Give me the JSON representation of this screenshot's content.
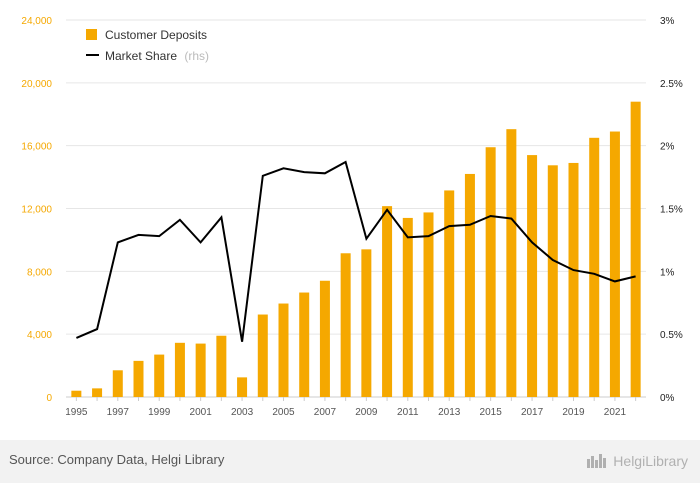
{
  "chart_data": {
    "type": "bar+line",
    "categories": [
      "1995",
      "1996",
      "1997",
      "1998",
      "1999",
      "2000",
      "2001",
      "2002",
      "2003",
      "2004",
      "2005",
      "2006",
      "2007",
      "2008",
      "2009",
      "2010",
      "2011",
      "2012",
      "2013",
      "2014",
      "2015",
      "2016",
      "2017",
      "2018",
      "2019",
      "2020",
      "2021",
      "2022"
    ],
    "x_tick_labels": [
      "1995",
      "1997",
      "1999",
      "2001",
      "2003",
      "2005",
      "2007",
      "2009",
      "2011",
      "2013",
      "2015",
      "2017",
      "2019",
      "2021"
    ],
    "series": [
      {
        "name": "Customer Deposits",
        "type": "bar",
        "axis": "left",
        "color": "#f5a800",
        "values": [
          400,
          550,
          1700,
          2300,
          2700,
          3450,
          3400,
          3900,
          1250,
          5250,
          5950,
          6650,
          7400,
          9150,
          9400,
          12150,
          11400,
          11750,
          13150,
          14200,
          15900,
          17050,
          15400,
          14750,
          14900,
          16500,
          16900,
          18800
        ]
      },
      {
        "name": "Market Share",
        "suffix": "(rhs)",
        "type": "line",
        "axis": "right",
        "color": "#000000",
        "values": [
          0.47,
          0.54,
          1.23,
          1.29,
          1.28,
          1.41,
          1.23,
          1.43,
          0.44,
          1.76,
          1.82,
          1.79,
          1.78,
          1.87,
          1.26,
          1.49,
          1.27,
          1.28,
          1.36,
          1.37,
          1.44,
          1.42,
          1.23,
          1.09,
          1.01,
          0.98,
          0.92,
          0.96
        ]
      }
    ],
    "y_left": {
      "min": 0,
      "max": 24000,
      "ticks": [
        "0",
        "4,000",
        "8,000",
        "12,000",
        "16,000",
        "20,000",
        "24,000"
      ],
      "tick_values": [
        0,
        4000,
        8000,
        12000,
        16000,
        20000,
        24000
      ],
      "color": "#f5a800"
    },
    "y_right": {
      "min": 0,
      "max": 3,
      "ticks": [
        "0%",
        "0.5%",
        "1%",
        "1.5%",
        "2%",
        "2.5%",
        "3%"
      ],
      "tick_values": [
        0,
        0.5,
        1,
        1.5,
        2,
        2.5,
        3
      ]
    },
    "grid": true,
    "legend_position": "top-left"
  },
  "legend": {
    "deposits_label": "Customer Deposits",
    "share_label": "Market Share",
    "share_suffix": "(rhs)"
  },
  "footer": {
    "source": "Source: Company Data, Helgi Library",
    "brand": "HelgiLibrary"
  }
}
